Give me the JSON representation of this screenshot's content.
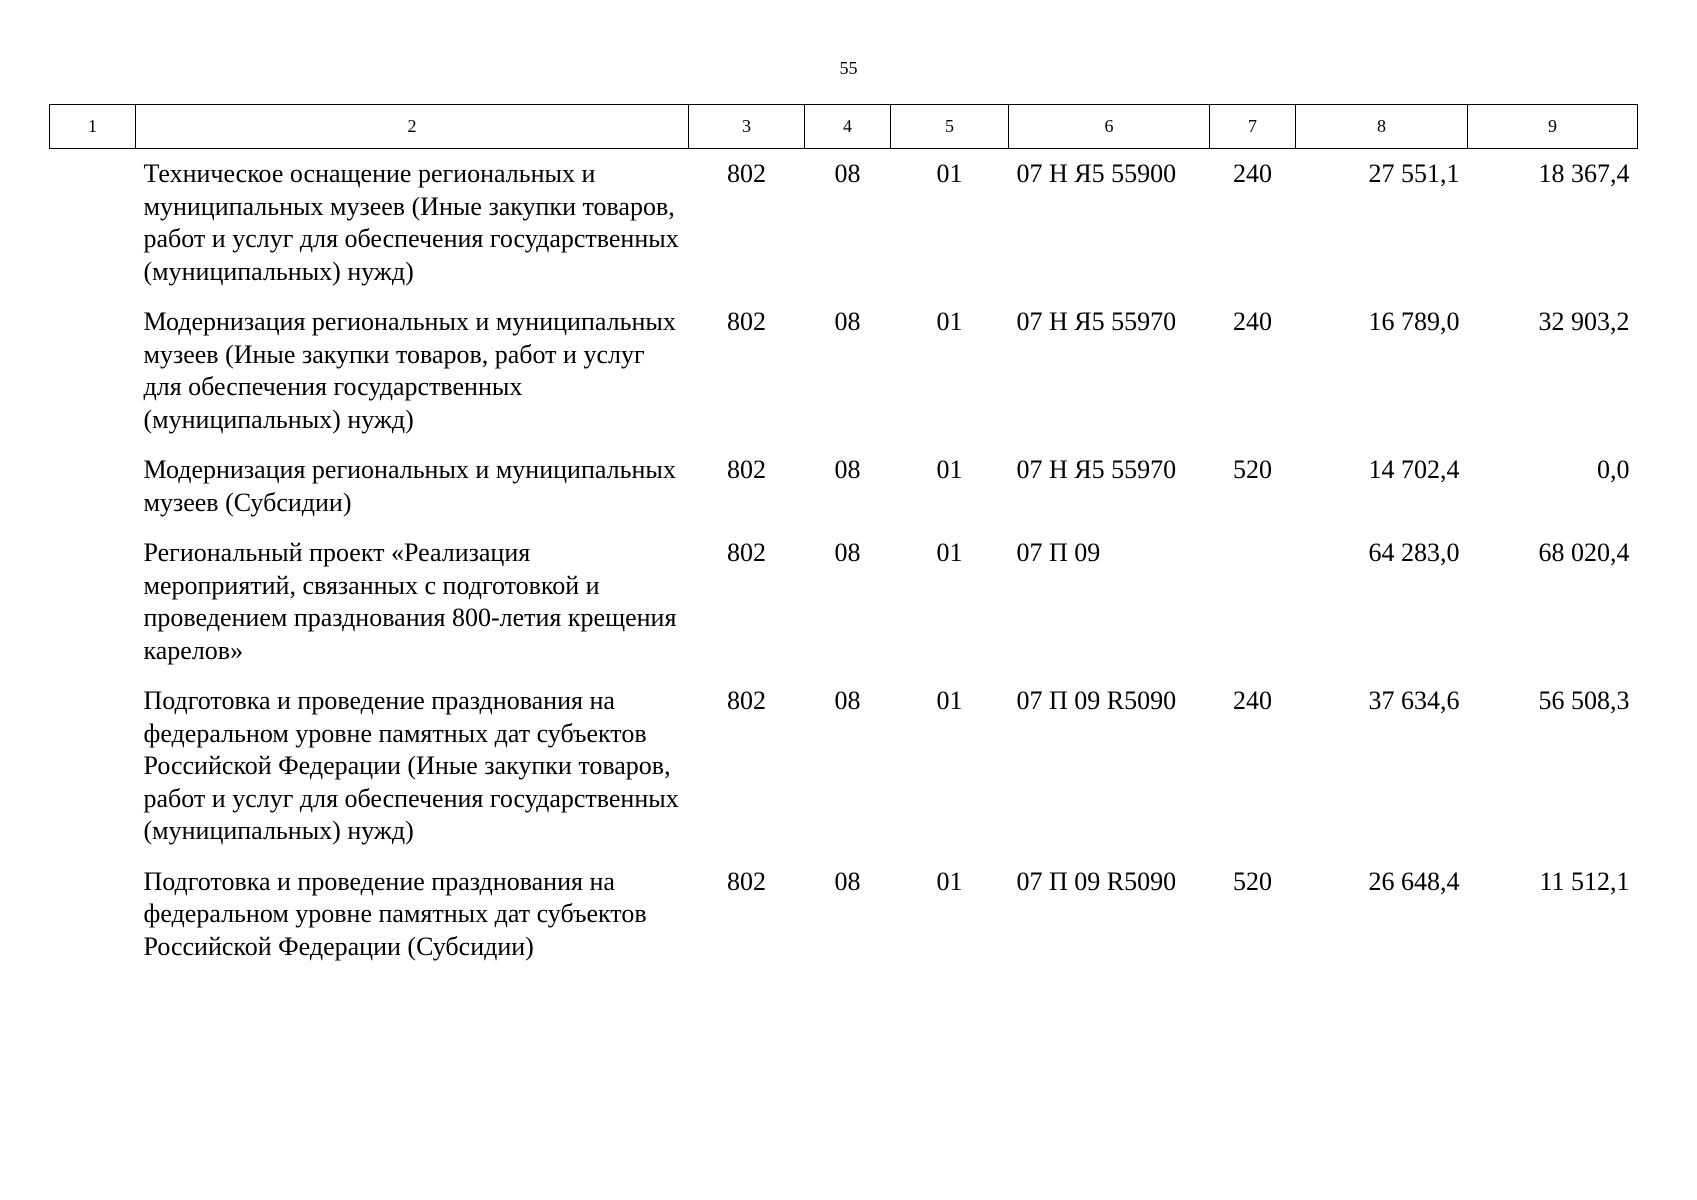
{
  "page": {
    "number": "55"
  },
  "table": {
    "header": [
      "1",
      "2",
      "3",
      "4",
      "5",
      "6",
      "7",
      "8",
      "9"
    ],
    "rows": [
      {
        "c1": "",
        "name": "Техническое оснащение региональных и муниципальных музеев (Иные закупки товаров, работ и услуг для обеспечения государственных (муниципальных) нужд)",
        "grbs": "802",
        "rz": "08",
        "pr": "01",
        "csr": "07 Н Я5 55900",
        "vr": "240",
        "sum1": "27 551,1",
        "sum2": "18 367,4"
      },
      {
        "c1": "",
        "name": "Модернизация региональных и муниципальных музеев (Иные закупки товаров, работ и услуг для обеспечения государственных (муниципальных) нужд)",
        "grbs": "802",
        "rz": "08",
        "pr": "01",
        "csr": "07 Н Я5 55970",
        "vr": "240",
        "sum1": "16 789,0",
        "sum2": "32 903,2"
      },
      {
        "c1": "",
        "name": "Модернизация региональных и муниципальных музеев (Субсидии)",
        "grbs": "802",
        "rz": "08",
        "pr": "01",
        "csr": "07 Н Я5 55970",
        "vr": "520",
        "sum1": "14 702,4",
        "sum2": "0,0"
      },
      {
        "c1": "",
        "name": "Региональный проект «Реализация мероприятий, связанных с подготовкой и проведением празднования 800-летия крещения карелов»",
        "grbs": "802",
        "rz": "08",
        "pr": "01",
        "csr": "07 П 09",
        "vr": "",
        "sum1": "64 283,0",
        "sum2": "68 020,4"
      },
      {
        "c1": "",
        "name": "Подготовка и проведение празднования на федеральном уровне памятных дат субъектов Российской Федерации (Иные закупки товаров, работ и услуг для обеспечения государственных (муниципальных) нужд)",
        "grbs": "802",
        "rz": "08",
        "pr": "01",
        "csr": "07 П 09 R5090",
        "vr": "240",
        "sum1": "37 634,6",
        "sum2": "56 508,3"
      },
      {
        "c1": "",
        "name": "Подготовка и проведение празднования на федеральном уровне памятных дат субъектов Российской Федерации (Субсидии)",
        "grbs": "802",
        "rz": "08",
        "pr": "01",
        "csr": "07 П 09 R5090",
        "vr": "520",
        "sum1": "26 648,4",
        "sum2": "11 512,1"
      }
    ]
  }
}
